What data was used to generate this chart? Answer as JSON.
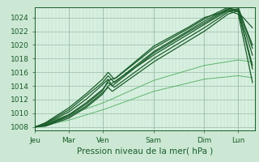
{
  "background_color": "#cce8d4",
  "plot_area_bg": "#d8f0e0",
  "grid_color_major": "#9abcaa",
  "grid_color_minor": "#b8d8c4",
  "line_color_dark": "#1a5c2a",
  "line_color_medium": "#2a7a3a",
  "line_color_thin": "#4aaa5a",
  "ylim": [
    1007.5,
    1025.5
  ],
  "yticks": [
    1008,
    1010,
    1012,
    1014,
    1016,
    1018,
    1020,
    1022,
    1024
  ],
  "xlabel": "Pression niveau de la mer( hPa )",
  "xlabel_fontsize": 7.5,
  "days": [
    "Jeu",
    "Mar",
    "Ven",
    "Sam",
    "Dim",
    "Lun"
  ],
  "tick_label_fontsize": 6.5,
  "day_x": [
    0.0,
    0.167,
    0.333,
    0.583,
    0.833,
    1.0
  ],
  "xlim": [
    0.0,
    1.083
  ]
}
